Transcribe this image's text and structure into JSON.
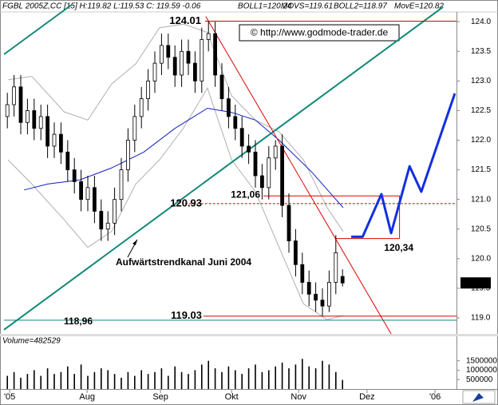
{
  "chart_data": {
    "type": "candlestick",
    "header": [
      {
        "text": "FGBL 2005Z,CC [15] H:119.82 L:119.53 C: 119.59 -0.06",
        "color": "#000000"
      },
      {
        "text": "BOLL1=120.24",
        "color": "#a0a0a0"
      },
      {
        "text": "MOVS=119.61",
        "color": "#a0a0a0"
      },
      {
        "text": "BOLL2=118.97",
        "color": "#a0a0a0"
      },
      {
        "text": "MovE=120.82",
        "color": "#1020d0"
      }
    ],
    "copyright": "© http://www.godmode-trader.de",
    "annotation": "Aufwärtstrendkanal Juni 2004",
    "xlim": [
      0,
      135
    ],
    "xticks": [
      {
        "value": 1.7,
        "label": "'05"
      },
      {
        "value": 24.8,
        "label": "Aug"
      },
      {
        "value": 46.7,
        "label": "Sep"
      },
      {
        "value": 67.9,
        "label": "Okt"
      },
      {
        "value": 87.9,
        "label": "Nov"
      },
      {
        "value": 108.3,
        "label": "Dez"
      },
      {
        "value": 128.6,
        "label": "'06"
      }
    ],
    "ylim": [
      118.77,
      124.3
    ],
    "yticks": [
      {
        "value": 119,
        "label": "119.0"
      },
      119.5,
      {
        "value": 120,
        "label": "120.0"
      },
      120.5,
      {
        "value": 121,
        "label": "121.0"
      },
      121.5,
      {
        "value": 122,
        "label": "122.0"
      },
      122.5,
      {
        "value": 123,
        "label": "123.0"
      },
      123.5,
      {
        "value": 124,
        "label": "124.0"
      }
    ],
    "up_color": "#ffffff",
    "down_color": "#000000",
    "x": [
      1,
      3,
      5,
      7,
      9,
      11,
      13,
      15,
      17,
      19,
      21,
      23,
      25,
      27,
      29,
      31,
      33,
      35,
      37,
      39,
      41,
      43,
      45,
      47,
      49,
      51,
      53,
      55,
      57,
      59,
      61,
      63,
      65,
      67,
      69,
      71,
      73,
      75,
      77,
      79,
      81,
      83,
      85,
      87,
      89,
      91,
      93,
      95,
      97,
      99,
      101
    ],
    "open": [
      122.4,
      122.6,
      122.9,
      122.3,
      122.5,
      122.2,
      122.4,
      121.9,
      122.1,
      121.8,
      121.5,
      121.3,
      121.0,
      121.2,
      120.8,
      120.5,
      120.6,
      121.0,
      121.5,
      122.0,
      122.4,
      122.7,
      123.0,
      123.3,
      123.6,
      123.4,
      123.1,
      123.5,
      123.3,
      123.0,
      123.7,
      123.8,
      123.1,
      122.7,
      122.4,
      122.2,
      121.9,
      121.8,
      121.4,
      121.2,
      121.7,
      121.9,
      120.9,
      120.3,
      119.9,
      119.6,
      119.4,
      119.3,
      119.2,
      119.6,
      119.7
    ],
    "high": [
      122.8,
      123.1,
      123.1,
      122.7,
      122.7,
      122.6,
      122.6,
      122.3,
      122.3,
      122.0,
      121.7,
      121.5,
      121.4,
      121.4,
      121.0,
      120.8,
      121.2,
      121.7,
      122.2,
      122.6,
      122.9,
      123.2,
      123.5,
      123.8,
      123.8,
      123.6,
      123.7,
      123.7,
      123.5,
      123.9,
      124.01,
      124.0,
      123.3,
      122.9,
      122.6,
      122.4,
      122.1,
      122.0,
      121.6,
      121.9,
      122.0,
      122.1,
      121.1,
      120.5,
      120.1,
      119.8,
      119.6,
      119.5,
      119.8,
      120.4,
      119.82
    ],
    "low": [
      122.2,
      122.4,
      122.1,
      122.1,
      122.0,
      122.0,
      121.7,
      121.7,
      121.6,
      121.3,
      121.1,
      120.8,
      120.8,
      120.6,
      120.3,
      120.3,
      120.4,
      120.8,
      121.3,
      121.8,
      122.2,
      122.5,
      122.8,
      123.1,
      123.2,
      122.9,
      122.9,
      123.1,
      122.8,
      122.8,
      123.5,
      122.9,
      122.5,
      122.2,
      122.0,
      121.7,
      121.6,
      121.2,
      121.0,
      121.0,
      121.5,
      120.7,
      120.1,
      119.7,
      119.4,
      119.2,
      119.1,
      119.03,
      119.1,
      119.4,
      119.53
    ],
    "close": [
      122.6,
      122.9,
      122.3,
      122.5,
      122.2,
      122.4,
      121.9,
      122.1,
      121.8,
      121.5,
      121.3,
      121.0,
      121.2,
      120.8,
      120.5,
      120.6,
      121.0,
      121.5,
      122.0,
      122.4,
      122.7,
      123.0,
      123.3,
      123.6,
      123.4,
      123.1,
      123.5,
      123.3,
      123.0,
      123.7,
      123.8,
      123.1,
      122.7,
      122.4,
      122.2,
      121.9,
      121.8,
      121.4,
      121.2,
      121.7,
      121.9,
      120.9,
      120.3,
      119.9,
      119.6,
      119.4,
      119.3,
      119.2,
      119.6,
      120.1,
      119.59
    ],
    "last_price": 119.59,
    "overlays": [
      {
        "color": "#b0b0b0",
        "x": [
          1.2,
          8.3,
          17.9,
          25,
          32.1,
          39.3,
          46.4,
          53.6,
          60.7,
          67.9,
          75,
          82.1,
          89.3,
          96.4,
          101.2
        ],
        "values": [
          123.02,
          123.08,
          122.48,
          122.34,
          122.95,
          123.29,
          123.9,
          123.96,
          123.82,
          122.75,
          122.34,
          122.14,
          121.67,
          120.86,
          120.46
        ]
      },
      {
        "color": "#b0b0b0",
        "x": [
          1.2,
          8.3,
          17.9,
          25,
          32.1,
          39.3,
          46.4,
          53.6,
          60.7,
          67.9,
          75,
          82.1,
          89.3,
          96.4,
          101.2
        ],
        "values": [
          121.67,
          121.26,
          120.66,
          120.19,
          120.46,
          121.26,
          121.67,
          122.21,
          122.88,
          121.67,
          121.13,
          120.19,
          119.24,
          118.97,
          119.04
        ]
      },
      {
        "color": "#1020c0",
        "x": [
          6,
          13,
          22.6,
          32,
          41.7,
          51,
          60.7,
          67.9,
          75,
          82.1,
          91.7,
          101.2
        ],
        "values": [
          121.16,
          121.26,
          121.33,
          121.53,
          121.8,
          122.2,
          122.54,
          122.47,
          122.34,
          122.0,
          121.47,
          120.86
        ]
      }
    ],
    "trendlines": [
      {
        "color": "#108878",
        "x": [
          0,
          131
        ],
        "values": [
          118.8,
          124.25
        ]
      },
      {
        "color": "#108878",
        "x": [
          0,
          20
        ],
        "values": [
          123.45,
          124.28
        ]
      },
      {
        "color": "#e00000",
        "x": [
          60.2,
          115.5
        ],
        "values": [
          124.09,
          118.73
        ]
      }
    ],
    "projection": {
      "color": "#1030e0",
      "x": [
        103.6,
        107,
        112.6,
        115.5,
        121,
        124.5,
        134.5
      ],
      "values": [
        120.37,
        120.37,
        121.09,
        120.43,
        121.56,
        121.13,
        122.79
      ]
    },
    "levels": [
      {
        "value": 124.01,
        "label": "124.01",
        "from": 60,
        "to": 135,
        "color": "#e00000",
        "text_color": "#d00000",
        "dashed": false
      },
      {
        "value": 120.93,
        "label": "120.93",
        "from": 54,
        "to": 135,
        "color": "#e00000",
        "text_color": "#d00000",
        "dashed": true
      },
      {
        "value": 119.03,
        "label": "119.03",
        "from": 59.5,
        "to": 135,
        "color": "#e00000",
        "text_color": "#d00000",
        "dashed": false
      },
      {
        "value": 121.06,
        "label": "121,06",
        "from": 77.4,
        "to": 118,
        "color": "#e00000",
        "text_color": "#000000",
        "dashed": false
      },
      {
        "value": 120.34,
        "label": "120,34",
        "from": 98.8,
        "to": 118,
        "color": "#e00000",
        "text_color": "#000000",
        "dashed": false
      },
      {
        "value": 118.96,
        "label": "118,96",
        "from": 0,
        "to": 135,
        "color": "#108878",
        "text_color": "#000000",
        "dashed": false
      }
    ],
    "volume": {
      "label": "Volume=482529",
      "color": "#000000",
      "ylim": [
        0,
        2800000
      ],
      "yticks": [
        1500000,
        1000000,
        500000
      ],
      "values": [
        700000,
        900000,
        600000,
        800000,
        1000000,
        700000,
        1100000,
        800000,
        900000,
        1200000,
        800000,
        1300000,
        700000,
        900000,
        1100000,
        1000000,
        800000,
        600000,
        900000,
        700000,
        1000000,
        800000,
        900000,
        1100000,
        700000,
        1200000,
        900000,
        800000,
        1000000,
        1300000,
        1500000,
        1100000,
        900000,
        1200000,
        1000000,
        800000,
        1100000,
        1300000,
        900000,
        1000000,
        1200000,
        1400000,
        1100000,
        1300000,
        1600000,
        1200000,
        1100000,
        1500000,
        1300000,
        900000,
        482529
      ]
    }
  }
}
